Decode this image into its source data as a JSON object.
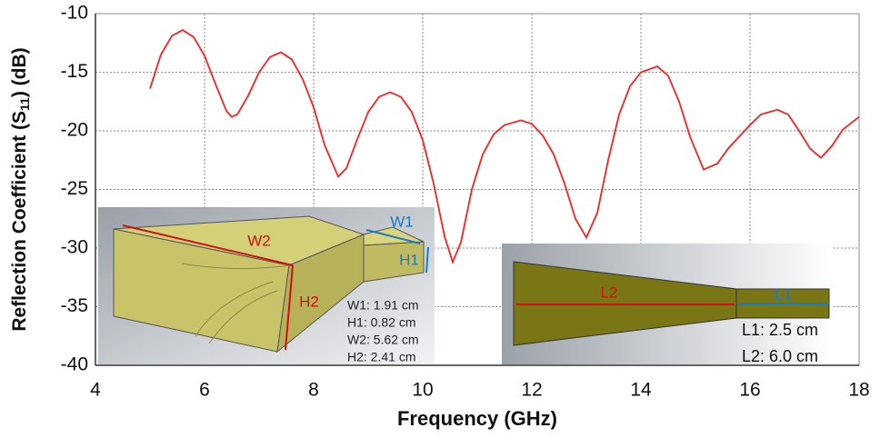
{
  "chart_data": {
    "type": "line",
    "x_label": "Frequency (GHz)",
    "y_label": [
      "Reflection Coefficient (S",
      "11",
      ") (dB)"
    ],
    "x": [
      5.0,
      5.2,
      5.4,
      5.6,
      5.8,
      6.0,
      6.2,
      6.4,
      6.5,
      6.6,
      6.8,
      7.0,
      7.2,
      7.4,
      7.6,
      7.8,
      8.0,
      8.2,
      8.45,
      8.6,
      8.8,
      9.0,
      9.2,
      9.4,
      9.6,
      9.8,
      10.0,
      10.2,
      10.4,
      10.55,
      10.7,
      10.9,
      11.1,
      11.3,
      11.5,
      11.8,
      12.0,
      12.2,
      12.4,
      12.6,
      12.8,
      13.0,
      13.2,
      13.4,
      13.6,
      13.8,
      14.0,
      14.3,
      14.5,
      14.7,
      14.9,
      15.15,
      15.4,
      15.6,
      15.8,
      16.0,
      16.2,
      16.5,
      16.7,
      16.9,
      17.1,
      17.3,
      17.5,
      17.7,
      18.0
    ],
    "series": [
      {
        "color": "#ff2020",
        "values": [
          -16.4,
          -13.5,
          -11.9,
          -11.4,
          -12.0,
          -13.6,
          -16.0,
          -18.3,
          -18.8,
          -18.6,
          -17.0,
          -15.0,
          -13.7,
          -13.3,
          -13.9,
          -15.6,
          -18.0,
          -21.2,
          -23.9,
          -23.2,
          -20.7,
          -18.4,
          -17.1,
          -16.7,
          -17.1,
          -18.4,
          -20.8,
          -24.5,
          -29.0,
          -31.2,
          -29.5,
          -25.0,
          -22.0,
          -20.3,
          -19.5,
          -19.1,
          -19.4,
          -20.4,
          -22.0,
          -24.5,
          -27.5,
          -29.1,
          -27.0,
          -22.5,
          -18.6,
          -16.2,
          -15.0,
          -14.5,
          -15.3,
          -17.5,
          -20.5,
          -23.3,
          -22.8,
          -21.5,
          -20.5,
          -19.5,
          -18.6,
          -18.2,
          -18.6,
          -20.0,
          -21.5,
          -22.3,
          -21.3,
          -19.9,
          -18.8
        ]
      }
    ],
    "xlim": [
      4,
      18
    ],
    "xticks": [
      4,
      6,
      8,
      10,
      12,
      14,
      16,
      18
    ],
    "ylim": [
      -40,
      -10
    ],
    "yticks": [
      -40,
      -35,
      -30,
      -25,
      -20,
      -15,
      -10
    ],
    "grid": true,
    "annotations": [
      "W2",
      "W1",
      "H1",
      "H2",
      "W1: 1.91 cm",
      "H1: 0.82 cm",
      "W2: 5.62 cm",
      "H2: 2.41 cm",
      "L2",
      "L1",
      "L1: 2.5 cm",
      "L2: 6.0 cm"
    ]
  }
}
